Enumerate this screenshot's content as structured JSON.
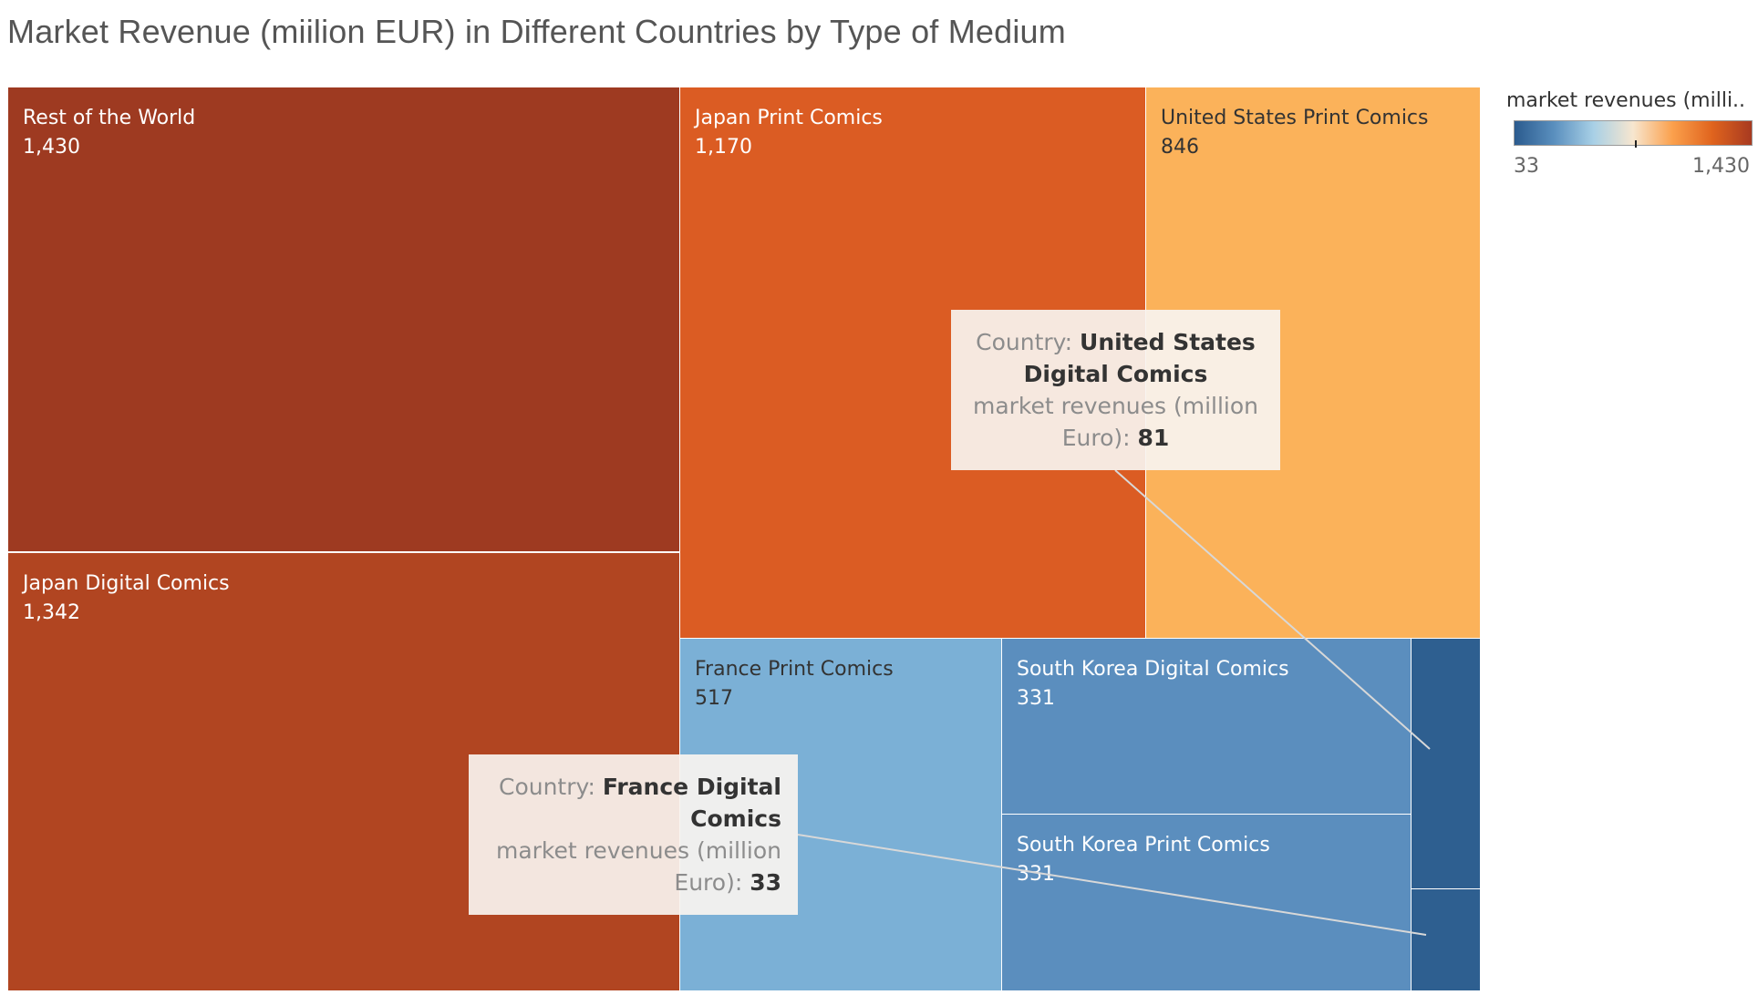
{
  "title": "Market Revenue (miilion EUR) in Different Countries by Type of Medium",
  "legend": {
    "title": "market revenues (milli..",
    "min_label": "33",
    "max_label": "1,430",
    "colors": [
      "#2b5b8e",
      "#5a8fbe",
      "#a8d0e6",
      "#f7e6cf",
      "#fba04c",
      "#e0641e",
      "#a83a20"
    ]
  },
  "tooltips": [
    {
      "country_prefix": "Country: ",
      "country": "United States Digital Comics",
      "measure_label": "market revenues (million Euro): ",
      "value": "81"
    },
    {
      "country_prefix": "Country: ",
      "country": "France Digital Comics",
      "measure_label": "market revenues (million Euro): ",
      "value": "33"
    }
  ],
  "chart_data": {
    "type": "treemap",
    "measure": "market revenues (million Euro)",
    "color_scale": {
      "min": 33,
      "max": 1430
    },
    "items": [
      {
        "label": "Rest of the World",
        "value": 1430,
        "value_label": "1,430",
        "color": "#9e3a21",
        "text_color": "#ffffff"
      },
      {
        "label": "Japan Digital Comics",
        "value": 1342,
        "value_label": "1,342",
        "color": "#b14521",
        "text_color": "#ffffff"
      },
      {
        "label": "Japan Print Comics",
        "value": 1170,
        "value_label": "1,170",
        "color": "#db5c23",
        "text_color": "#ffffff"
      },
      {
        "label": "United States Print Comics",
        "value": 846,
        "value_label": "846",
        "color": "#fbb25a",
        "text_color": "#333333"
      },
      {
        "label": "France Print Comics",
        "value": 517,
        "value_label": "517",
        "color": "#7bb0d6",
        "text_color": "#333333"
      },
      {
        "label": "South Korea Digital Comics",
        "value": 331,
        "value_label": "331",
        "color": "#5b8ebe",
        "text_color": "#ffffff"
      },
      {
        "label": "South Korea Print Comics",
        "value": 331,
        "value_label": "331",
        "color": "#5b8ebe",
        "text_color": "#ffffff"
      },
      {
        "label": "United States Digital Comics",
        "value": 81,
        "value_label": "",
        "color": "#2e5f90",
        "text_color": "#ffffff"
      },
      {
        "label": "France Digital Comics",
        "value": 33,
        "value_label": "",
        "color": "#2e5f90",
        "text_color": "#ffffff"
      }
    ]
  }
}
